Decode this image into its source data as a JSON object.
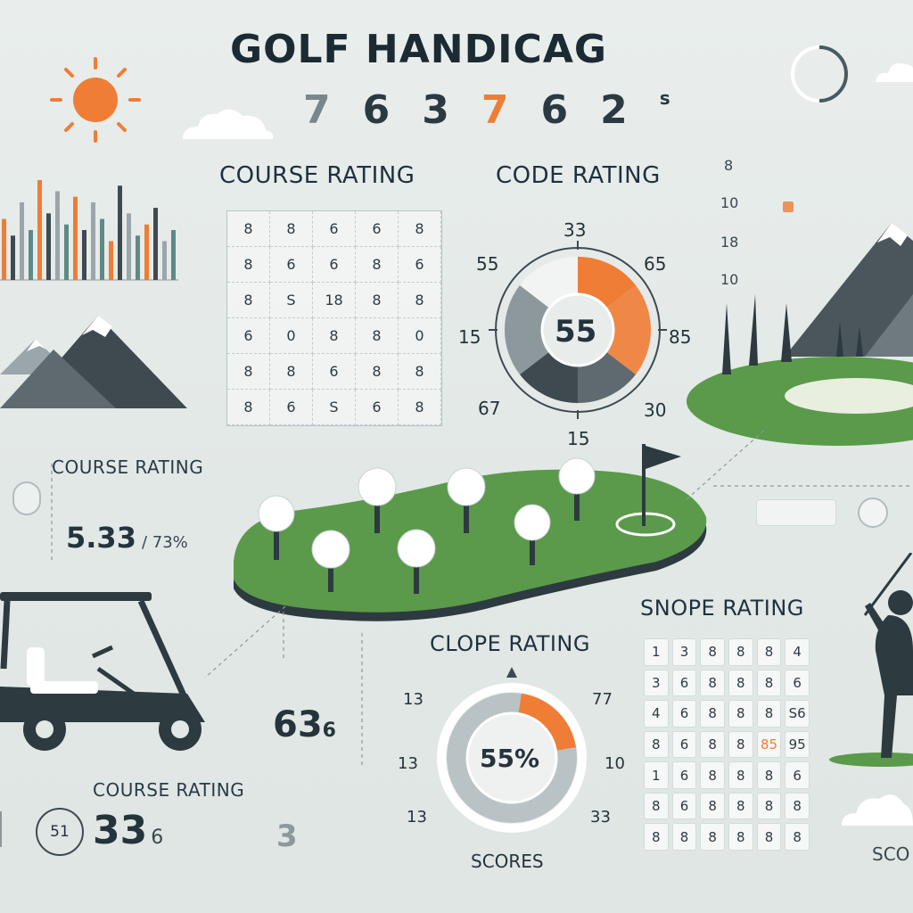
{
  "title": "GOLF HANDICAG",
  "title_digits": [
    "7",
    "6",
    "3",
    "7",
    "6",
    "2",
    "s"
  ],
  "colors": {
    "accent": "#ef7d35",
    "dark": "#3e4a50",
    "green": "#5a9a4a",
    "background": "#e6ebe9"
  },
  "course_rating_top": {
    "heading": "COURSE RATING",
    "grid": [
      [
        "8",
        "8",
        "6",
        "6",
        "8"
      ],
      [
        "8",
        "6",
        "6",
        "8",
        "6"
      ],
      [
        "8",
        "S",
        "18",
        "8",
        "8"
      ],
      [
        "6",
        "0",
        "8",
        "8",
        "0"
      ],
      [
        "8",
        "8",
        "6",
        "8",
        "8"
      ],
      [
        "8",
        "6",
        "S",
        "6",
        "8"
      ]
    ]
  },
  "code_rating": {
    "heading": "CODE RATING",
    "center_value": "55",
    "labels": {
      "top": "33",
      "top_left": "55",
      "top_right": "65",
      "left": "15",
      "right": "85",
      "bottom_left": "67",
      "bottom_right": "30",
      "bottom": "15"
    }
  },
  "right_column_numbers": [
    "8",
    "10",
    "18",
    "10"
  ],
  "course_rating_left": {
    "heading": "COURSE RATING",
    "value": "5.33",
    "suffix": "/ 73%"
  },
  "mid_value": "63",
  "mid_value_suffix": "6",
  "course_rating_bottom": {
    "heading": "COURSE RATING",
    "badge": "51",
    "value": "33",
    "suffix": "6",
    "faint": "3"
  },
  "clope_rating": {
    "heading": "CLOPE RATING",
    "center_value": "55%",
    "labels": {
      "top_left": "13",
      "top_right": "77",
      "left": "13",
      "right": "10",
      "bottom_left": "13",
      "bottom_right": "33"
    },
    "footer": "SCORES",
    "progress_fraction": 0.2
  },
  "snope_rating": {
    "heading": "SNOPE RATING",
    "grid": [
      [
        "1",
        "3",
        "8",
        "8",
        "8",
        "4"
      ],
      [
        "3",
        "6",
        "8",
        "8",
        "8",
        "6"
      ],
      [
        "4",
        "6",
        "8",
        "8",
        "8",
        "S6"
      ],
      [
        "8",
        "6",
        "8",
        "8",
        "85",
        "95"
      ],
      [
        "1",
        "6",
        "8",
        "8",
        "8",
        "6"
      ],
      [
        "8",
        "6",
        "8",
        "8",
        "8",
        "8"
      ],
      [
        "8",
        "8",
        "8",
        "8",
        "8",
        "8"
      ]
    ],
    "highlighted": [
      [
        3,
        4
      ]
    ]
  },
  "scores_right": "SCO",
  "bar_chart": {
    "values": [
      55,
      40,
      70,
      45,
      90,
      60,
      80,
      50,
      75,
      45,
      70,
      55,
      35,
      85,
      60,
      40,
      50,
      65,
      35,
      45
    ],
    "colors": [
      "#ef7d35",
      "#3e4a50",
      "#9aa6aa",
      "#5e8a86"
    ]
  }
}
